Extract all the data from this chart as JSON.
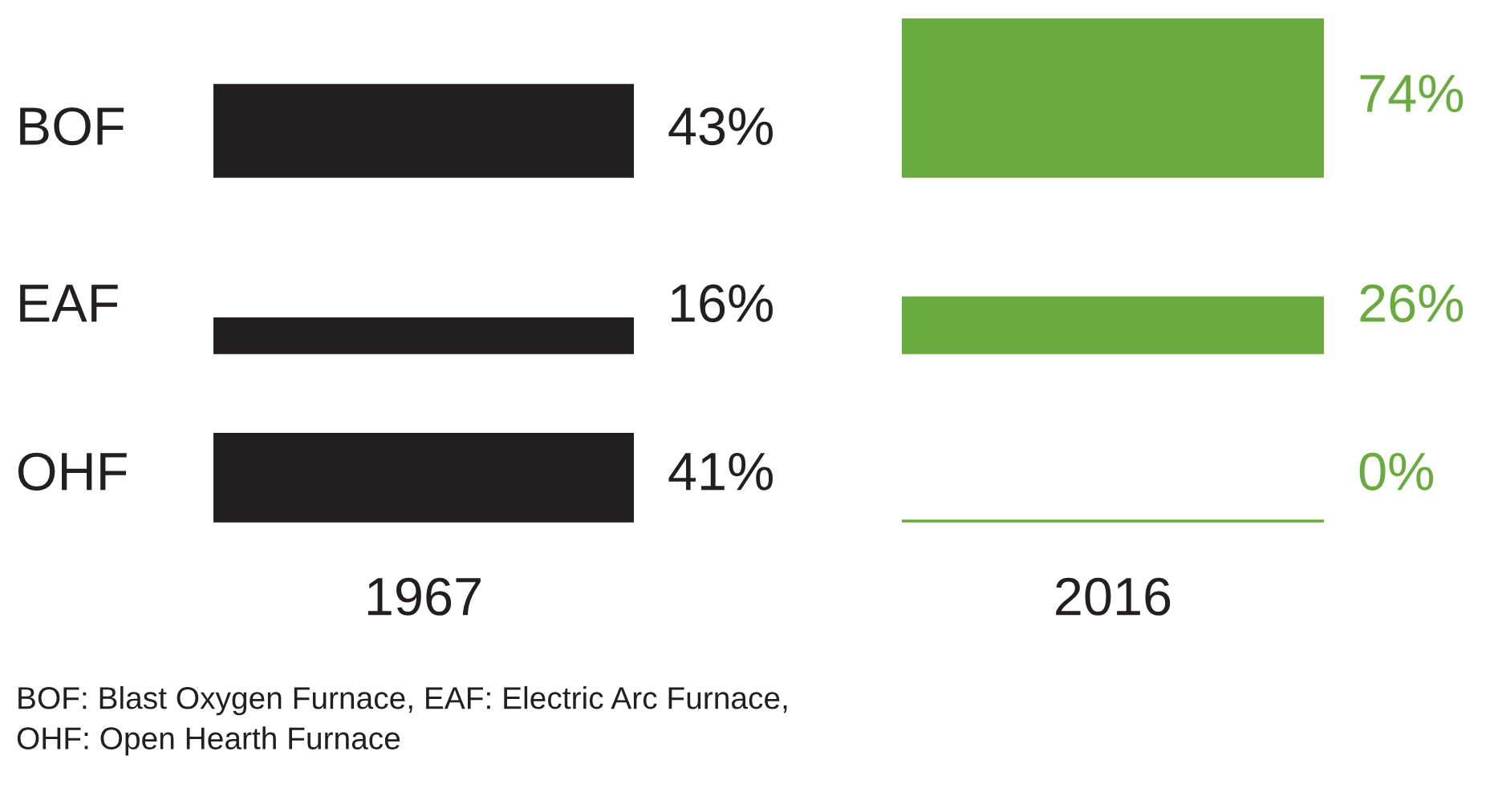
{
  "chart_data": [
    {
      "type": "other",
      "categories": [
        "BOF",
        "EAF",
        "OHF"
      ],
      "values": [
        43,
        16,
        41
      ],
      "value_labels": [
        "43%",
        "16%",
        "41%"
      ],
      "color": "#231f20",
      "xlabel": "1967"
    },
    {
      "type": "other",
      "categories": [
        null,
        null,
        null
      ],
      "values": [
        74,
        26,
        0
      ],
      "value_labels": [
        "74%",
        "26%",
        "0%"
      ],
      "color": "#6aab3f",
      "xlabel": "2016",
      "annotations": [
        "BOF: Blast Oxygen Furnace, EAF: Electric Arc Furnace,\nOHF: Open Hearth Furnace"
      ]
    }
  ]
}
